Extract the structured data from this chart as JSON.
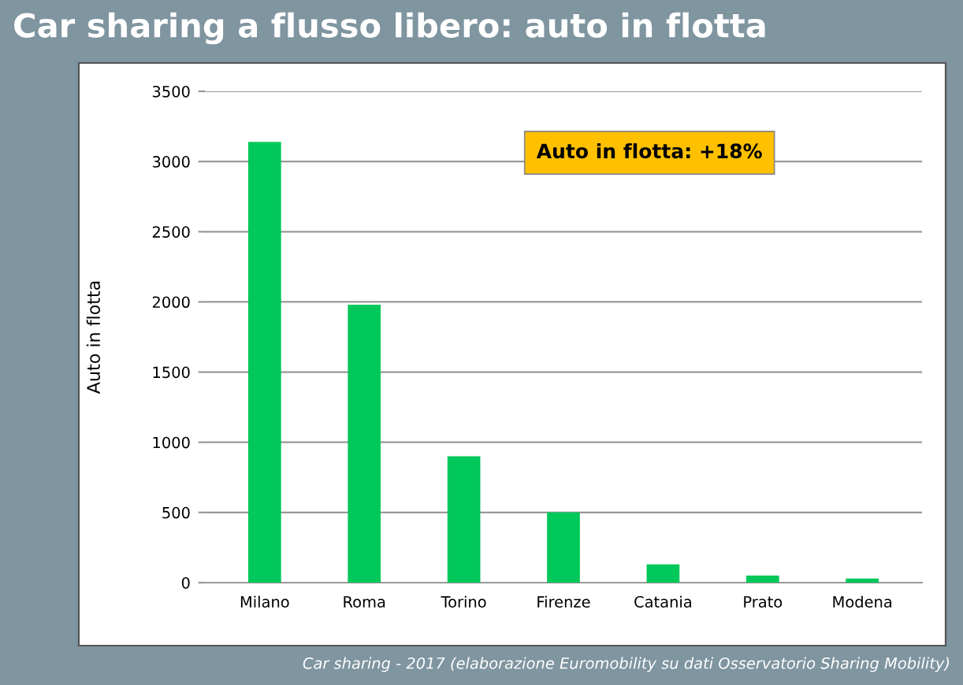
{
  "chart_data": {
    "type": "bar",
    "title": "Car sharing a flusso libero: auto in flotta",
    "ylabel": "Auto in flotta",
    "categories": [
      "Milano",
      "Roma",
      "Torino",
      "Firenze",
      "Catania",
      "Prato",
      "Modena"
    ],
    "values": [
      3140,
      1980,
      900,
      500,
      130,
      50,
      30
    ],
    "color": "#00c85a",
    "ylim": [
      0,
      3500
    ],
    "yticks": [
      0,
      500,
      1000,
      1500,
      2000,
      2500,
      3000,
      3500
    ],
    "grid": "y",
    "annotations": [
      "Auto in flotta: +18%",
      "Car sharing - 2017 (elaborazione Euromobility su dati Osservatorio Sharing Mobility)"
    ]
  }
}
